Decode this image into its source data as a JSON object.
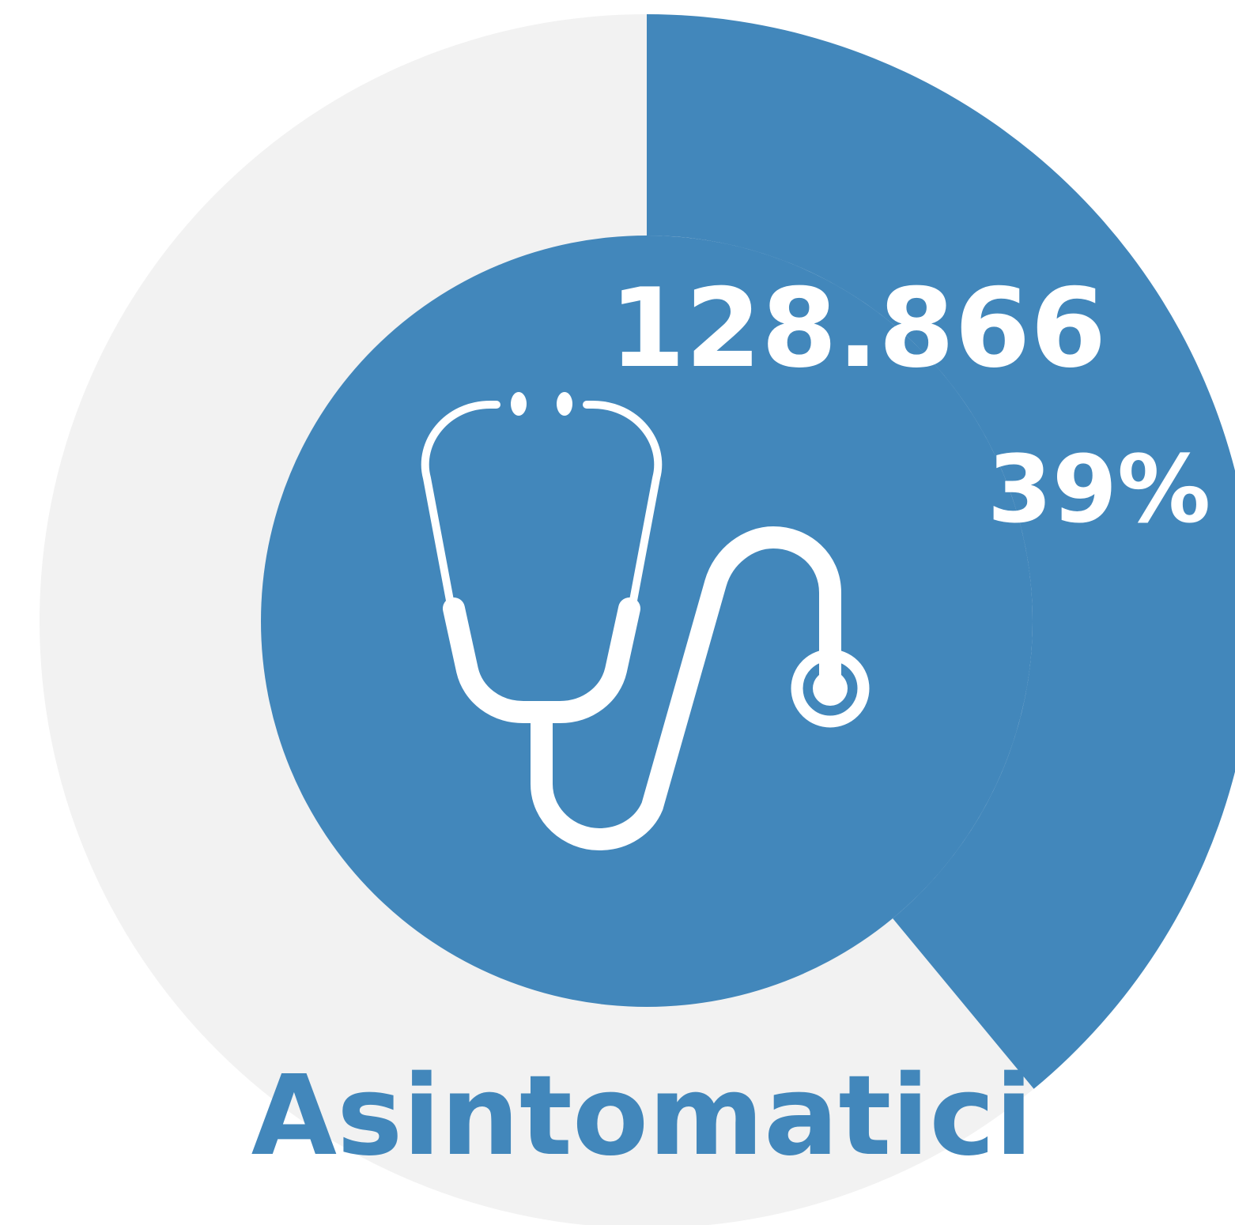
{
  "chart_data": {
    "type": "donut",
    "title": "Asintomatici",
    "annotation": "128.866",
    "values": [
      39
    ],
    "value_labels": [
      "39%"
    ],
    "colors": [
      "#4287bb"
    ],
    "track_color": "#f2f2f2"
  }
}
